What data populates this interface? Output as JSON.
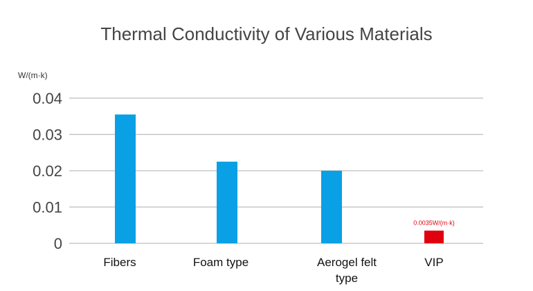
{
  "chart_data": {
    "type": "bar",
    "title": "Thermal Conductivity of  Various Materials",
    "ylabel": "W/(m·k)",
    "xlabel": "",
    "ylim": [
      0,
      0.04
    ],
    "yticks": [
      "0.04",
      "0.03",
      "0.02",
      "0.01",
      "0"
    ],
    "grid": true,
    "categories": [
      [
        "Fibers"
      ],
      [
        "Foam type"
      ],
      [
        "Aerogel felt",
        "type"
      ],
      [
        "VIP"
      ]
    ],
    "values": [
      0.0355,
      0.0225,
      0.02,
      0.0035
    ],
    "bar_colors": [
      "#0aa0e6",
      "#0aa0e6",
      "#0aa0e6",
      "#e0000f"
    ],
    "annotations": [
      {
        "bar_index": 3,
        "text": "0.0035W/(m·k)",
        "color": "#e0000f"
      }
    ]
  }
}
